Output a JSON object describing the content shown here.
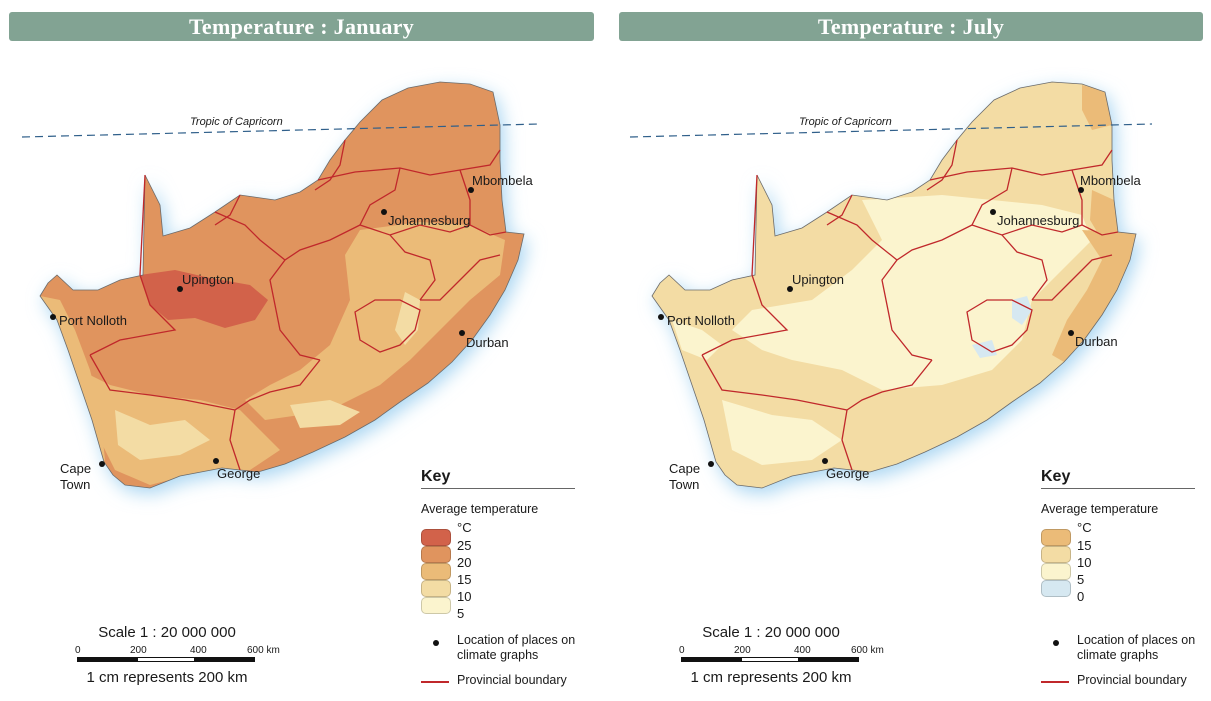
{
  "panels": [
    {
      "title": "Temperature : January",
      "tropic_label": "Tropic of Capricorn",
      "places": {
        "mbombela": "Mbombela",
        "johannesburg": "Johannesburg",
        "upington": "Upington",
        "port_nolloth": "Port Nolloth",
        "durban": "Durban",
        "cape_town_1": "Cape",
        "cape_town_2": "Town",
        "george": "George"
      },
      "key": {
        "title": "Key",
        "subtitle": "Average temperature",
        "unit": "°C",
        "ticks": [
          "25",
          "20",
          "15",
          "10",
          "5"
        ],
        "colors": [
          "#d2624a",
          "#e0945e",
          "#ebbb78",
          "#f3dca4",
          "#fbf4ce"
        ],
        "location_label": "Location of places on climate graphs",
        "boundary_label": "Provincial boundary"
      },
      "scale": {
        "ratio": "Scale 1 : 20 000 000",
        "ticks": [
          "0",
          "200",
          "400",
          "600 km"
        ],
        "caption": "1 cm represents 200 km"
      }
    },
    {
      "title": "Temperature : July",
      "tropic_label": "Tropic of Capricorn",
      "places": {
        "mbombela": "Mbombela",
        "johannesburg": "Johannesburg",
        "upington": "Upington",
        "port_nolloth": "Port Nolloth",
        "durban": "Durban",
        "cape_town_1": "Cape",
        "cape_town_2": "Town",
        "george": "George"
      },
      "key": {
        "title": "Key",
        "subtitle": "Average temperature",
        "unit": "°C",
        "ticks": [
          "15",
          "10",
          "5",
          "0"
        ],
        "colors": [
          "#ebbb78",
          "#f3dca4",
          "#fbf4ce",
          "#d6e8f1"
        ],
        "location_label": "Location of places on climate graphs",
        "boundary_label": "Provincial boundary"
      },
      "scale": {
        "ratio": "Scale 1 : 20 000 000",
        "ticks": [
          "0",
          "200",
          "400",
          "600 km"
        ],
        "caption": "1 cm represents 200 km"
      }
    }
  ],
  "colors": {
    "title_bar": "#82a393",
    "boundary": "#c0282b",
    "coast_glow": "#a9d6f2",
    "tropic_line": "#2f5f8a"
  }
}
